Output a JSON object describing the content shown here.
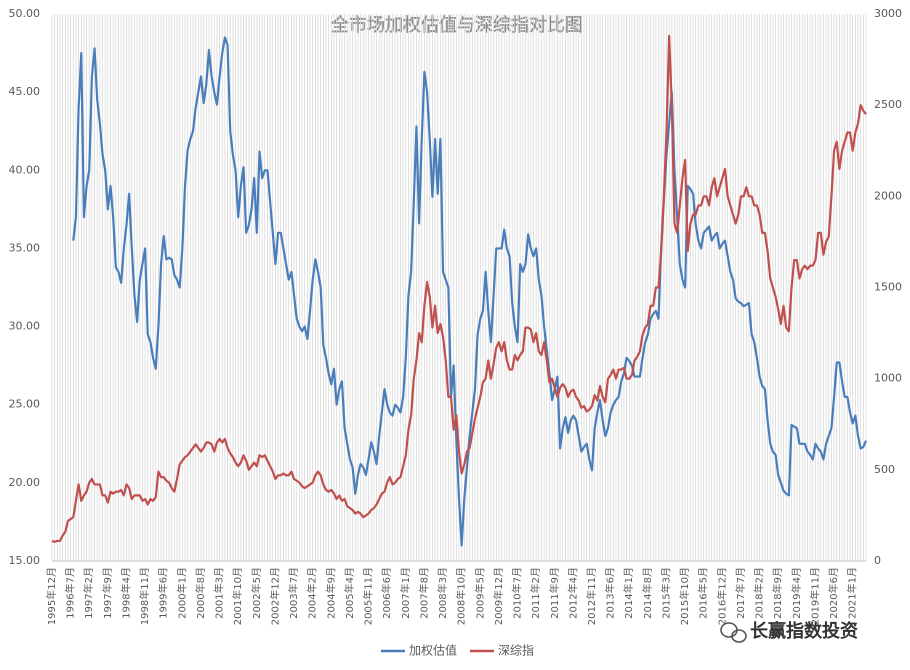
{
  "chart_data": {
    "type": "line",
    "title": "全市场加权估值与深综指对比图",
    "watermark": "长赢指数投资",
    "categories": [
      "1995年12月",
      null,
      null,
      null,
      null,
      null,
      null,
      "1996年7月",
      null,
      null,
      null,
      null,
      null,
      null,
      "1997年2月",
      null,
      null,
      null,
      null,
      null,
      null,
      "1997年9月",
      null,
      null,
      null,
      null,
      null,
      null,
      "1998年4月",
      null,
      null,
      null,
      null,
      null,
      null,
      "1998年11月",
      null,
      null,
      null,
      null,
      null,
      null,
      "1999年6月",
      null,
      null,
      null,
      null,
      null,
      null,
      "2000年1月",
      null,
      null,
      null,
      null,
      null,
      null,
      "2000年8月",
      null,
      null,
      null,
      null,
      null,
      null,
      "2001年3月",
      null,
      null,
      null,
      null,
      null,
      null,
      "2001年10月",
      null,
      null,
      null,
      null,
      null,
      null,
      "2002年5月",
      null,
      null,
      null,
      null,
      null,
      null,
      "2002年12月",
      null,
      null,
      null,
      null,
      null,
      null,
      "2003年7月",
      null,
      null,
      null,
      null,
      null,
      null,
      "2004年2月",
      null,
      null,
      null,
      null,
      null,
      null,
      "2004年9月",
      null,
      null,
      null,
      null,
      null,
      null,
      "2005年4月",
      null,
      null,
      null,
      null,
      null,
      null,
      "2005年11月",
      null,
      null,
      null,
      null,
      null,
      null,
      "2006年6月",
      null,
      null,
      null,
      null,
      null,
      null,
      "2007年1月",
      null,
      null,
      null,
      null,
      null,
      null,
      "2007年8月",
      null,
      null,
      null,
      null,
      null,
      null,
      "2008年3月",
      null,
      null,
      null,
      null,
      null,
      null,
      "2008年10月",
      null,
      null,
      null,
      null,
      null,
      null,
      "2009年5月",
      null,
      null,
      null,
      null,
      null,
      null,
      "2009年12月",
      null,
      null,
      null,
      null,
      null,
      null,
      "2010年7月",
      null,
      null,
      null,
      null,
      null,
      null,
      "2011年2月",
      null,
      null,
      null,
      null,
      null,
      null,
      "2011年9月",
      null,
      null,
      null,
      null,
      null,
      null,
      "2012年4月",
      null,
      null,
      null,
      null,
      null,
      null,
      "2012年11月",
      null,
      null,
      null,
      null,
      null,
      null,
      "2013年6月",
      null,
      null,
      null,
      null,
      null,
      null,
      "2014年1月",
      null,
      null,
      null,
      null,
      null,
      null,
      "2014年8月",
      null,
      null,
      null,
      null,
      null,
      null,
      "2015年3月",
      null,
      null,
      null,
      null,
      null,
      null,
      "2015年10月",
      null,
      null,
      null,
      null,
      null,
      null,
      "2016年5月",
      null,
      null,
      null,
      null,
      null,
      null,
      "2016年12月",
      null,
      null,
      null,
      null,
      null,
      null,
      "2017年7月",
      null,
      null,
      null,
      null,
      null,
      null,
      "2018年2月",
      null,
      null,
      null,
      null,
      null,
      null,
      "2018年9月",
      null,
      null,
      null,
      null,
      null,
      null,
      "2019年4月",
      null,
      null,
      null,
      null,
      null,
      null,
      "2019年11月",
      null,
      null,
      null,
      null,
      null,
      null,
      "2020年6月",
      null,
      null,
      null,
      null,
      null,
      null,
      "2021年1月",
      null,
      null,
      null,
      null,
      null
    ],
    "series": [
      {
        "name": "加权估值",
        "color": "#4a7ebb",
        "axis": "y",
        "values": [
          null,
          null,
          null,
          null,
          null,
          null,
          null,
          null,
          35.5,
          37,
          44,
          47.5,
          37,
          39,
          40,
          46,
          47.8,
          44.5,
          43,
          41,
          40,
          37.5,
          39,
          37,
          33.8,
          33.5,
          32.8,
          35,
          36.5,
          38.5,
          35,
          32,
          30.3,
          33,
          34,
          35,
          29.5,
          29,
          28,
          27.3,
          30,
          34,
          35.8,
          34.3,
          34.4,
          34.3,
          33.3,
          33,
          32.5,
          35,
          39,
          41.3,
          42,
          42.5,
          44,
          45,
          46,
          44.3,
          45.5,
          47.7,
          46,
          45,
          44.2,
          46,
          47.5,
          48.5,
          48,
          42.5,
          41,
          40,
          37,
          39,
          40.2,
          36,
          36.5,
          37.5,
          39.5,
          36,
          41.2,
          39.5,
          40,
          40,
          38,
          36,
          34,
          36,
          36,
          35,
          34,
          33,
          33.5,
          32,
          30.5,
          30,
          29.7,
          30,
          29.2,
          31,
          33,
          34.3,
          33.5,
          32.5,
          28.8,
          28,
          27,
          26.3,
          27.3,
          25,
          26,
          26.5,
          23.5,
          22.5,
          21.5,
          21,
          19.3,
          20.5,
          21.2,
          21,
          20.5,
          21.5,
          22.6,
          22,
          21.2,
          23,
          24.5,
          26,
          25,
          24.5,
          24.3,
          25,
          24.8,
          24.5,
          25.5,
          28,
          32,
          33.5,
          38,
          42.8,
          36.6,
          42,
          46.3,
          45,
          42,
          38.3,
          42,
          38.5,
          42,
          33.5,
          33,
          32.5,
          25.5,
          27.5,
          22.7,
          19,
          16,
          19,
          21,
          23,
          24.5,
          26,
          29.5,
          30.5,
          31,
          33.5,
          31,
          29,
          32,
          35,
          35,
          35,
          36.2,
          35,
          34.5,
          31.5,
          30,
          29,
          34,
          33.5,
          34,
          35.9,
          35,
          34.5,
          35,
          33,
          32,
          30,
          28.5,
          27,
          25.3,
          26,
          26.8,
          22.2,
          23.5,
          24.2,
          23.2,
          24,
          24.3,
          24,
          23,
          22,
          22.3,
          22.5,
          21.5,
          20.8,
          23.5,
          24.5,
          25.3,
          24,
          23,
          23.5,
          24.5,
          25,
          25.3,
          25.5,
          26.5,
          27,
          28,
          27.8,
          27.5,
          26.8,
          26.8,
          26.8,
          28,
          29,
          29.5,
          30.5,
          30.8,
          31,
          30.5,
          35,
          38,
          41,
          43,
          45,
          40,
          37,
          34,
          33,
          32.5,
          39,
          38.8,
          38.5,
          36.5,
          35.5,
          35,
          36,
          36.2,
          36.4,
          35.5,
          35.8,
          36,
          35,
          35.3,
          35.5,
          34.5,
          33.5,
          33,
          31.8,
          31.6,
          31.5,
          31.3,
          31.4,
          31.5,
          29.5,
          29,
          28,
          26.8,
          26.2,
          26,
          24,
          22.5,
          22,
          21.8,
          20.5,
          20,
          19.5,
          19.3,
          19.2,
          23.7,
          23.6,
          23.5,
          22.5,
          22.5,
          22.5,
          22,
          21.8,
          21.5,
          22.5,
          22.2,
          22,
          21.5,
          22.5,
          23,
          23.5,
          25.5,
          27.7,
          27.7,
          26.5,
          25.5,
          25.5,
          24.5,
          23.8,
          24.3,
          23,
          22.2,
          22.3,
          22.7
        ]
      },
      {
        "name": "深综指",
        "color": "#c0504d",
        "axis": "y2",
        "values": [
          110,
          105,
          110,
          110,
          140,
          160,
          220,
          230,
          240,
          330,
          420,
          330,
          360,
          380,
          430,
          450,
          420,
          420,
          420,
          360,
          360,
          320,
          380,
          370,
          380,
          380,
          390,
          360,
          420,
          400,
          340,
          360,
          360,
          360,
          330,
          340,
          310,
          340,
          330,
          350,
          490,
          460,
          460,
          440,
          430,
          400,
          380,
          450,
          530,
          550,
          570,
          580,
          600,
          620,
          640,
          620,
          600,
          620,
          650,
          650,
          640,
          600,
          650,
          670,
          650,
          670,
          620,
          590,
          570,
          540,
          520,
          540,
          580,
          550,
          500,
          520,
          540,
          520,
          580,
          570,
          580,
          550,
          520,
          490,
          450,
          470,
          470,
          480,
          470,
          470,
          490,
          450,
          440,
          430,
          410,
          400,
          410,
          420,
          430,
          470,
          490,
          470,
          420,
          390,
          380,
          390,
          370,
          340,
          360,
          330,
          340,
          300,
          290,
          280,
          260,
          270,
          260,
          240,
          250,
          260,
          280,
          290,
          310,
          340,
          370,
          380,
          430,
          460,
          420,
          430,
          450,
          460,
          520,
          580,
          720,
          800,
          1000,
          1100,
          1250,
          1200,
          1400,
          1530,
          1450,
          1280,
          1400,
          1250,
          1300,
          1230,
          1100,
          900,
          900,
          720,
          800,
          600,
          480,
          530,
          600,
          620,
          700,
          780,
          840,
          900,
          980,
          1000,
          1100,
          1000,
          1080,
          1170,
          1200,
          1150,
          1200,
          1100,
          1050,
          1050,
          1130,
          1100,
          1130,
          1150,
          1280,
          1280,
          1270,
          1200,
          1250,
          1150,
          1130,
          1200,
          1100,
          980,
          1000,
          950,
          900,
          950,
          970,
          950,
          900,
          930,
          940,
          900,
          880,
          840,
          850,
          820,
          830,
          850,
          910,
          880,
          960,
          900,
          870,
          1000,
          1020,
          1050,
          1000,
          1050,
          1050,
          1060,
          1000,
          1000,
          1020,
          1100,
          1120,
          1150,
          1240,
          1280,
          1300,
          1400,
          1400,
          1500,
          1500,
          1700,
          2000,
          2350,
          2880,
          2500,
          1850,
          1800,
          1950,
          2100,
          2200,
          1700,
          1850,
          1900,
          1900,
          1950,
          1950,
          2000,
          2000,
          1950,
          2050,
          2100,
          2000,
          2050,
          2100,
          2150,
          2000,
          1950,
          1900,
          1850,
          1900,
          2000,
          2000,
          2050,
          2000,
          2000,
          1950,
          1950,
          1900,
          1800,
          1800,
          1700,
          1550,
          1500,
          1450,
          1380,
          1300,
          1400,
          1280,
          1260,
          1500,
          1650,
          1650,
          1550,
          1600,
          1620,
          1600,
          1620,
          1620,
          1650,
          1800,
          1800,
          1680,
          1750,
          1780,
          2000,
          2250,
          2300,
          2150,
          2250,
          2300,
          2350,
          2350,
          2250,
          2350,
          2400,
          2500,
          2470,
          2450
        ]
      }
    ],
    "ylim": [
      15,
      50
    ],
    "yticks": [
      {
        "value": 15,
        "label": "15.00"
      },
      {
        "value": 20,
        "label": "20.00"
      },
      {
        "value": 25,
        "label": "25.00"
      },
      {
        "value": 30,
        "label": "30.00"
      },
      {
        "value": 35,
        "label": "35.00"
      },
      {
        "value": 40,
        "label": "40.00"
      },
      {
        "value": 45,
        "label": "45.00"
      },
      {
        "value": 50,
        "label": "50.00"
      }
    ],
    "y2lim": [
      0,
      3000
    ],
    "y2ticks": [
      0,
      500,
      1000,
      1500,
      2000,
      2500,
      3000
    ],
    "grid": "x",
    "grid_color": "#d9d9d9",
    "legend": "bottom"
  }
}
